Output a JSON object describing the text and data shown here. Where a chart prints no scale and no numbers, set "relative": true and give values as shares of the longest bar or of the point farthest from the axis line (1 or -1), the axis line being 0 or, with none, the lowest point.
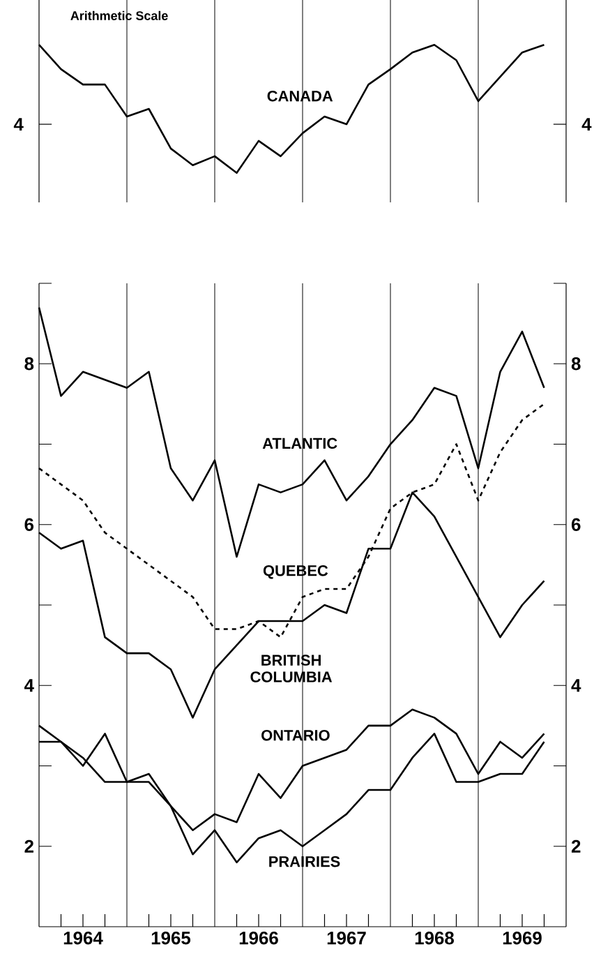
{
  "chart_data": [
    {
      "type": "line",
      "annotations": [
        "Arithmetic Scale",
        "4",
        "4"
      ],
      "relative": true,
      "x": [
        1964,
        1964.25,
        1964.5,
        1964.75,
        1965,
        1965.25,
        1965.5,
        1965.75,
        1966,
        1966.25,
        1966.5,
        1966.75,
        1967,
        1967.25,
        1967.5,
        1967.75,
        1968,
        1968.25,
        1968.5,
        1968.75,
        1969,
        1969.25,
        1969.5,
        1969.75
      ],
      "series": [
        {
          "name": "CANADA",
          "color": "#000000",
          "values": [
            1,
            0.81,
            0.69,
            0.69,
            0.44,
            0.5,
            0.19,
            0.06,
            0.13,
            0,
            0.25,
            0.13,
            0.31,
            0.44,
            0.38,
            0.69,
            0.81,
            0.94,
            1,
            0.88,
            0.56,
            0.75,
            0.94,
            1
          ]
        }
      ],
      "line_style": "solid",
      "xlim": [
        1964,
        1970
      ],
      "ref_lines": [
        {
          "axis": "x",
          "value": 1965,
          "label": null
        },
        {
          "axis": "x",
          "value": 1966,
          "label": null
        },
        {
          "axis": "x",
          "value": 1967,
          "label": null
        },
        {
          "axis": "x",
          "value": 1968,
          "label": null
        },
        {
          "axis": "x",
          "value": 1969,
          "label": null
        }
      ]
    },
    {
      "type": "line",
      "x": [
        1964,
        1964.25,
        1964.5,
        1964.75,
        1965,
        1965.25,
        1965.5,
        1965.75,
        1966,
        1966.25,
        1966.5,
        1966.75,
        1967,
        1967.25,
        1967.5,
        1967.75,
        1968,
        1968.25,
        1968.5,
        1968.75,
        1969,
        1969.25,
        1969.5,
        1969.75
      ],
      "series": [
        {
          "name": "ATLANTIC",
          "color": "#000000",
          "values": [
            8.7,
            7.6,
            7.9,
            7.8,
            7.7,
            7.9,
            6.7,
            6.3,
            6.8,
            5.6,
            6.5,
            6.4,
            6.5,
            6.8,
            6.3,
            6.6,
            7.0,
            7.3,
            7.7,
            7.6,
            6.7,
            7.9,
            8.4,
            7.7
          ]
        },
        {
          "name": "QUEBEC",
          "color": "#000000",
          "line_style": "dashed",
          "values": [
            6.7,
            6.5,
            6.3,
            5.9,
            5.7,
            5.5,
            5.3,
            5.1,
            4.7,
            4.7,
            4.8,
            4.6,
            5.1,
            5.2,
            5.2,
            5.6,
            6.2,
            6.4,
            6.5,
            7.0,
            6.3,
            6.9,
            7.3,
            7.5
          ]
        },
        {
          "name": "BRITISH COLUMBIA",
          "color": "#000000",
          "values": [
            5.9,
            5.7,
            5.8,
            4.6,
            4.4,
            4.4,
            4.2,
            3.6,
            4.2,
            4.5,
            4.8,
            4.8,
            4.8,
            5.0,
            4.9,
            5.7,
            5.7,
            6.4,
            6.1,
            5.6,
            5.1,
            4.6,
            5.0,
            5.3
          ]
        },
        {
          "name": "ONTARIO",
          "color": "#000000",
          "values": [
            3.5,
            3.3,
            3.0,
            3.4,
            2.8,
            2.8,
            2.5,
            2.2,
            2.4,
            2.3,
            2.9,
            2.6,
            3.0,
            3.1,
            3.2,
            3.5,
            3.5,
            3.7,
            3.6,
            3.4,
            2.9,
            3.3,
            3.1,
            3.4
          ]
        },
        {
          "name": "PRAIRIES",
          "color": "#000000",
          "values": [
            3.3,
            3.3,
            3.1,
            2.8,
            2.8,
            2.9,
            2.5,
            1.9,
            2.2,
            1.8,
            2.1,
            2.2,
            2.0,
            2.2,
            2.4,
            2.7,
            2.7,
            3.1,
            3.4,
            2.8,
            2.8,
            2.9,
            2.9,
            3.3
          ]
        }
      ],
      "line_style": "solid",
      "xlim": [
        1964,
        1970
      ],
      "xticks": [
        {
          "value": 1964.25,
          "label": null
        },
        {
          "value": 1964.5,
          "label": "1964"
        },
        {
          "value": 1964.75,
          "label": null
        },
        {
          "value": 1965.25,
          "label": null
        },
        {
          "value": 1965.5,
          "label": "1965"
        },
        {
          "value": 1965.75,
          "label": null
        },
        {
          "value": 1966.25,
          "label": null
        },
        {
          "value": 1966.5,
          "label": "1966"
        },
        {
          "value": 1966.75,
          "label": null
        },
        {
          "value": 1967.25,
          "label": null
        },
        {
          "value": 1967.5,
          "label": "1967"
        },
        {
          "value": 1967.75,
          "label": null
        },
        {
          "value": 1968.25,
          "label": null
        },
        {
          "value": 1968.5,
          "label": "1968"
        },
        {
          "value": 1968.75,
          "label": null
        },
        {
          "value": 1969.25,
          "label": null
        },
        {
          "value": 1969.5,
          "label": "1969"
        },
        {
          "value": 1969.75,
          "label": null
        }
      ],
      "ylim": [
        1,
        9
      ],
      "yticks": [
        2,
        {
          "value": 3,
          "label": null
        },
        4,
        {
          "value": 5,
          "label": null
        },
        6,
        {
          "value": 7,
          "label": null
        },
        8,
        {
          "value": 9,
          "label": null
        }
      ],
      "y2lim": [
        1,
        9
      ],
      "y2ticks": [
        2,
        {
          "value": 3,
          "label": null
        },
        4,
        {
          "value": 5,
          "label": null
        },
        6,
        {
          "value": 7,
          "label": null
        },
        8,
        {
          "value": 9,
          "label": null
        }
      ],
      "ref_lines": [
        {
          "axis": "x",
          "value": 1965,
          "label": null
        },
        {
          "axis": "x",
          "value": 1966,
          "label": null
        },
        {
          "axis": "x",
          "value": 1967,
          "label": null
        },
        {
          "axis": "x",
          "value": 1968,
          "label": null
        },
        {
          "axis": "x",
          "value": 1969,
          "label": null
        }
      ]
    }
  ]
}
